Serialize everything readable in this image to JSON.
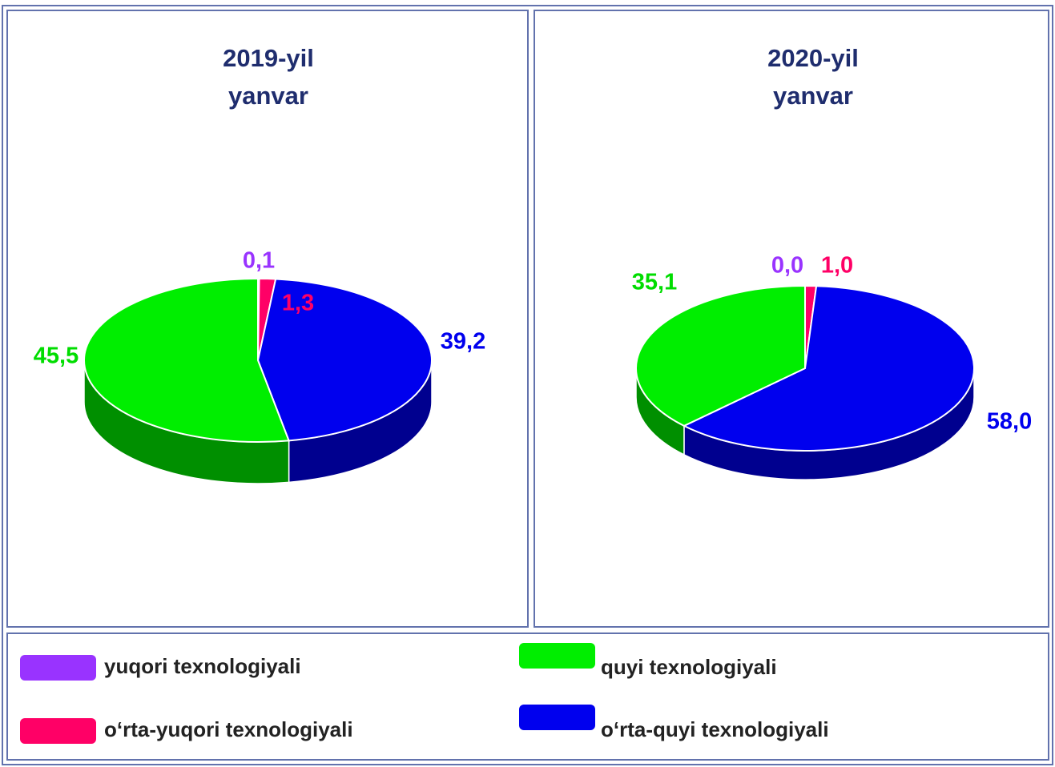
{
  "legend": {
    "categories": [
      "yuqori texnologiyali",
      "o‘rta-yuqori texnologiyali",
      "o‘rta-quyi texnologiyali",
      "quyi texnologiyali"
    ],
    "colors": [
      "#9933ff",
      "#ff0066",
      "#0000ee",
      "#00ee00"
    ],
    "label_colors": [
      "#9933ff",
      "#ff0066",
      "#0000ee",
      "#00dd00"
    ]
  },
  "chart_data": [
    {
      "type": "pie",
      "title": [
        "2019-yil",
        "yanvar"
      ],
      "values": [
        0.1,
        1.3,
        39.2,
        45.5
      ],
      "value_labels": [
        "0,1",
        "1,3",
        "39,2",
        "45,5"
      ]
    },
    {
      "type": "pie",
      "title": [
        "2020-yil",
        "yanvar"
      ],
      "values": [
        0.0,
        1.0,
        58.0,
        35.1
      ],
      "value_labels": [
        "0,0",
        "1,0",
        "58,0",
        "35,1"
      ]
    }
  ]
}
